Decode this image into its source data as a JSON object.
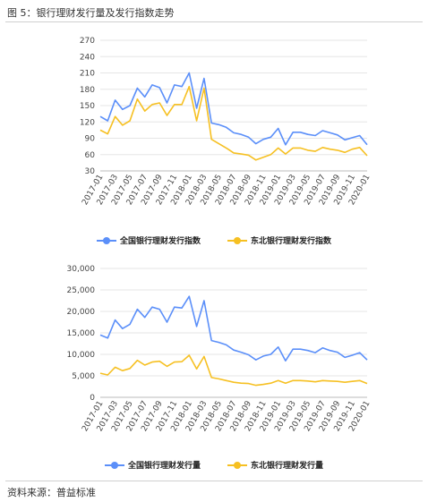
{
  "figure_title": "图 5：银行理财发行量及发行指数走势",
  "source_note": "资料来源：普益标准",
  "colors": {
    "national": "#5b8ff9",
    "northeast": "#f6c022"
  },
  "chart_data": [
    {
      "type": "line",
      "categories": [
        "2017-01",
        "2017-02",
        "2017-03",
        "2017-04",
        "2017-05",
        "2017-06",
        "2017-07",
        "2017-08",
        "2017-09",
        "2017-10",
        "2017-11",
        "2017-12",
        "2018-01",
        "2018-02",
        "2018-03",
        "2018-04",
        "2018-05",
        "2018-06",
        "2018-07",
        "2018-08",
        "2018-09",
        "2018-10",
        "2018-11",
        "2018-12",
        "2019-01",
        "2019-02",
        "2019-03",
        "2019-04",
        "2019-05",
        "2019-06",
        "2019-07",
        "2019-08",
        "2019-09",
        "2019-10",
        "2019-11",
        "2019-12",
        "2020-01"
      ],
      "x_tick_labels": [
        "2017-01",
        "2017-03",
        "2017-05",
        "2017-07",
        "2017-09",
        "2017-11",
        "2018-01",
        "2018-03",
        "2018-05",
        "2018-07",
        "2018-09",
        "2018-11",
        "2019-01",
        "2019-03",
        "2019-05",
        "2019-07",
        "2019-09",
        "2019-11",
        "2020-01"
      ],
      "y_ticks": [
        30,
        60,
        90,
        120,
        150,
        180,
        210,
        240,
        270
      ],
      "ylim": [
        30,
        270
      ],
      "series": [
        {
          "name": "全国银行理财发行指数",
          "color": "#5b8ff9",
          "values": [
            130,
            122,
            160,
            143,
            150,
            182,
            166,
            188,
            183,
            155,
            188,
            185,
            210,
            145,
            200,
            118,
            115,
            110,
            100,
            97,
            92,
            80,
            88,
            92,
            108,
            78,
            101,
            101,
            97,
            95,
            104,
            100,
            96,
            87,
            91,
            95,
            78
          ]
        },
        {
          "name": "东北银行理财发行指数",
          "color": "#f6c022",
          "values": [
            105,
            98,
            130,
            114,
            122,
            162,
            140,
            152,
            155,
            132,
            152,
            152,
            185,
            122,
            182,
            88,
            80,
            72,
            63,
            61,
            59,
            50,
            55,
            60,
            72,
            61,
            72,
            72,
            68,
            66,
            73,
            70,
            68,
            64,
            70,
            73,
            58
          ]
        }
      ]
    },
    {
      "type": "line",
      "categories": [
        "2017-01",
        "2017-02",
        "2017-03",
        "2017-04",
        "2017-05",
        "2017-06",
        "2017-07",
        "2017-08",
        "2017-09",
        "2017-10",
        "2017-11",
        "2017-12",
        "2018-01",
        "2018-02",
        "2018-03",
        "2018-04",
        "2018-05",
        "2018-06",
        "2018-07",
        "2018-08",
        "2018-09",
        "2018-10",
        "2018-11",
        "2018-12",
        "2019-01",
        "2019-02",
        "2019-03",
        "2019-04",
        "2019-05",
        "2019-06",
        "2019-07",
        "2019-08",
        "2019-09",
        "2019-10",
        "2019-11",
        "2019-12",
        "2020-01"
      ],
      "x_tick_labels": [
        "2017-01",
        "2017-03",
        "2017-05",
        "2017-07",
        "2017-09",
        "2017-11",
        "2018-01",
        "2018-03",
        "2018-05",
        "2018-07",
        "2018-09",
        "2018-11",
        "2019-01",
        "2019-03",
        "2019-05",
        "2019-07",
        "2019-09",
        "2019-11",
        "2020-01"
      ],
      "y_ticks": [
        "0",
        "5,000",
        "10,000",
        "15,000",
        "20,000",
        "25,000",
        "30,000"
      ],
      "ylim": [
        0,
        30000
      ],
      "series": [
        {
          "name": "全国银行理财发行量",
          "color": "#5b8ff9",
          "values": [
            14500,
            13800,
            18000,
            16000,
            17000,
            20500,
            18600,
            21000,
            20500,
            17500,
            21000,
            20800,
            23500,
            16500,
            22500,
            13200,
            12800,
            12200,
            11000,
            10500,
            9900,
            8700,
            9600,
            10000,
            11700,
            8500,
            11200,
            11200,
            10900,
            10400,
            11500,
            10900,
            10500,
            9300,
            9800,
            10400,
            8700
          ]
        },
        {
          "name": "东北银行理财发行量",
          "color": "#f6c022",
          "values": [
            5600,
            5200,
            7000,
            6200,
            6700,
            8600,
            7500,
            8200,
            8400,
            7200,
            8200,
            8300,
            9800,
            6600,
            9500,
            4600,
            4300,
            3900,
            3500,
            3300,
            3200,
            2800,
            3000,
            3300,
            3900,
            3300,
            3900,
            3900,
            3800,
            3600,
            3900,
            3800,
            3700,
            3500,
            3700,
            3900,
            3200
          ]
        }
      ]
    }
  ]
}
